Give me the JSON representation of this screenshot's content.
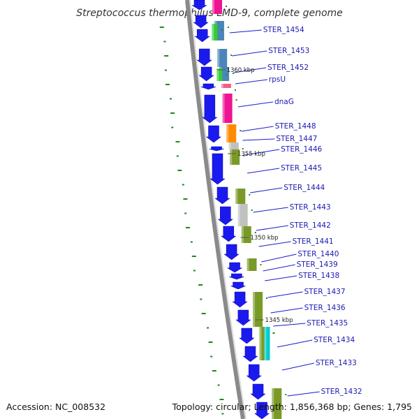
{
  "title": "Streptococcus thermophilus LMD-9, complete genome",
  "footer": {
    "accession": "Accession: NC_008532",
    "topology": "Topology: circular; Length: 1,856,368 bp; Genes: 1,795"
  },
  "colors": {
    "gene_blue": "#1a1aee",
    "leader_blue": "#2222cc",
    "backbone": "#888888",
    "olive": "#7a9a28",
    "magenta": "#ee1493",
    "orange": "#ff8c00",
    "steel": "#4b86b8",
    "green": "#33cc33",
    "grey": "#c0c0c0",
    "cyan": "#00cccc",
    "salmon": "#f06080",
    "gc_tick": "#1a8a1a"
  },
  "genes": [
    {
      "label": "STER_1454",
      "category": "steel"
    },
    {
      "label": "STER_1453",
      "category": "steel"
    },
    {
      "label": "STER_1452",
      "category": "steel"
    },
    {
      "label": "rpsU",
      "category": "salmon"
    },
    {
      "label": "dnaG",
      "category": "magenta"
    },
    {
      "label": "STER_1448",
      "category": "orange"
    },
    {
      "label": "STER_1447",
      "category": "grey"
    },
    {
      "label": "STER_1446",
      "category": "olive"
    },
    {
      "label": "STER_1445",
      "category": "none"
    },
    {
      "label": "STER_1444",
      "category": "olive"
    },
    {
      "label": "STER_1443",
      "category": "grey"
    },
    {
      "label": "STER_1442",
      "category": "olive"
    },
    {
      "label": "STER_1441",
      "category": "none"
    },
    {
      "label": "STER_1440",
      "category": "olive"
    },
    {
      "label": "STER_1439",
      "category": "none"
    },
    {
      "label": "STER_1438",
      "category": "none"
    },
    {
      "label": "STER_1437",
      "category": "olive"
    },
    {
      "label": "STER_1436",
      "category": "olive"
    },
    {
      "label": "STER_1435",
      "category": "olive"
    },
    {
      "label": "STER_1434",
      "category": "cyan"
    },
    {
      "label": "STER_1433",
      "category": "olive"
    },
    {
      "label": "STER_1432",
      "category": "olive"
    }
  ],
  "scale_marks": [
    "1360 kbp",
    "1355 kbp",
    "1350 kbp",
    "1345 kbp"
  ]
}
